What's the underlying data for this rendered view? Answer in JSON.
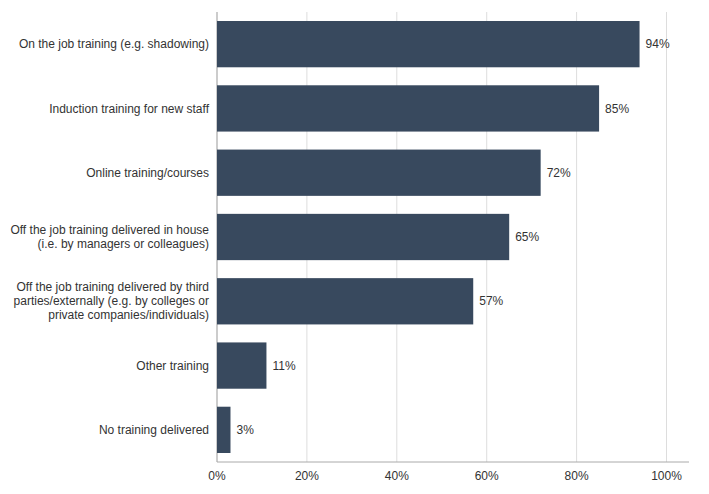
{
  "chart_data": {
    "type": "bar",
    "orientation": "horizontal",
    "categories": [
      "No training delivered",
      "Other training",
      "Off the job training delivered by third\nparties/externally (e.g. by colleges or\nprivate companies/individuals)",
      "Off the job training delivered in house\n(i.e. by managers or colleagues)",
      "Online training/courses",
      "Induction training for new staff",
      "On the job training (e.g. shadowing)"
    ],
    "values": [
      3,
      11,
      57,
      65,
      72,
      85,
      94
    ],
    "value_labels": [
      "3%",
      "11%",
      "57%",
      "65%",
      "72%",
      "85%",
      "94%"
    ],
    "data_labels": true,
    "color": "#38495e",
    "xlim": [
      0,
      105
    ],
    "xticks": [
      {
        "value": 0,
        "label": "0%"
      },
      {
        "value": 20,
        "label": "20%"
      },
      {
        "value": 40,
        "label": "40%"
      },
      {
        "value": 60,
        "label": "60%"
      },
      {
        "value": 80,
        "label": "80%"
      },
      {
        "value": 100,
        "label": "100%"
      }
    ],
    "grid": true
  }
}
